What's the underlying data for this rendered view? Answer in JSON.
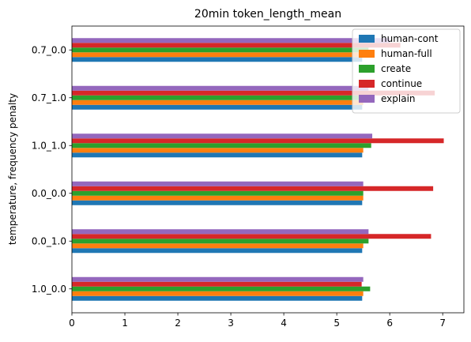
{
  "chart_data": {
    "type": "bar",
    "orientation": "horizontal",
    "title": "20min token_length_mean",
    "xlabel": "",
    "ylabel": "temperature, frequency penalty",
    "xlim": [
      0,
      7.4
    ],
    "xticks": [
      0,
      1,
      2,
      3,
      4,
      5,
      6,
      7
    ],
    "categories": [
      "1.0_0.0",
      "0.0_1.0",
      "0.0_0.0",
      "1.0_1.0",
      "0.7_1.0",
      "0.7_0.0"
    ],
    "series": [
      {
        "name": "human-cont",
        "color": "#1f77b4",
        "values": [
          5.48,
          5.48,
          5.48,
          5.48,
          5.48,
          5.48
        ]
      },
      {
        "name": "human-full",
        "color": "#ff7f0e",
        "values": [
          5.5,
          5.5,
          5.5,
          5.5,
          5.5,
          5.5
        ]
      },
      {
        "name": "create",
        "color": "#2ca02c",
        "values": [
          5.63,
          5.6,
          5.5,
          5.65,
          5.5,
          5.6
        ]
      },
      {
        "name": "continue",
        "color": "#d62728",
        "values": [
          5.47,
          6.78,
          6.82,
          7.02,
          6.85,
          6.2
        ]
      },
      {
        "name": "explain",
        "color": "#9467bd",
        "values": [
          5.5,
          5.6,
          5.5,
          5.67,
          5.6,
          6.0
        ]
      }
    ],
    "grid": false,
    "legend_position": "top-right"
  }
}
